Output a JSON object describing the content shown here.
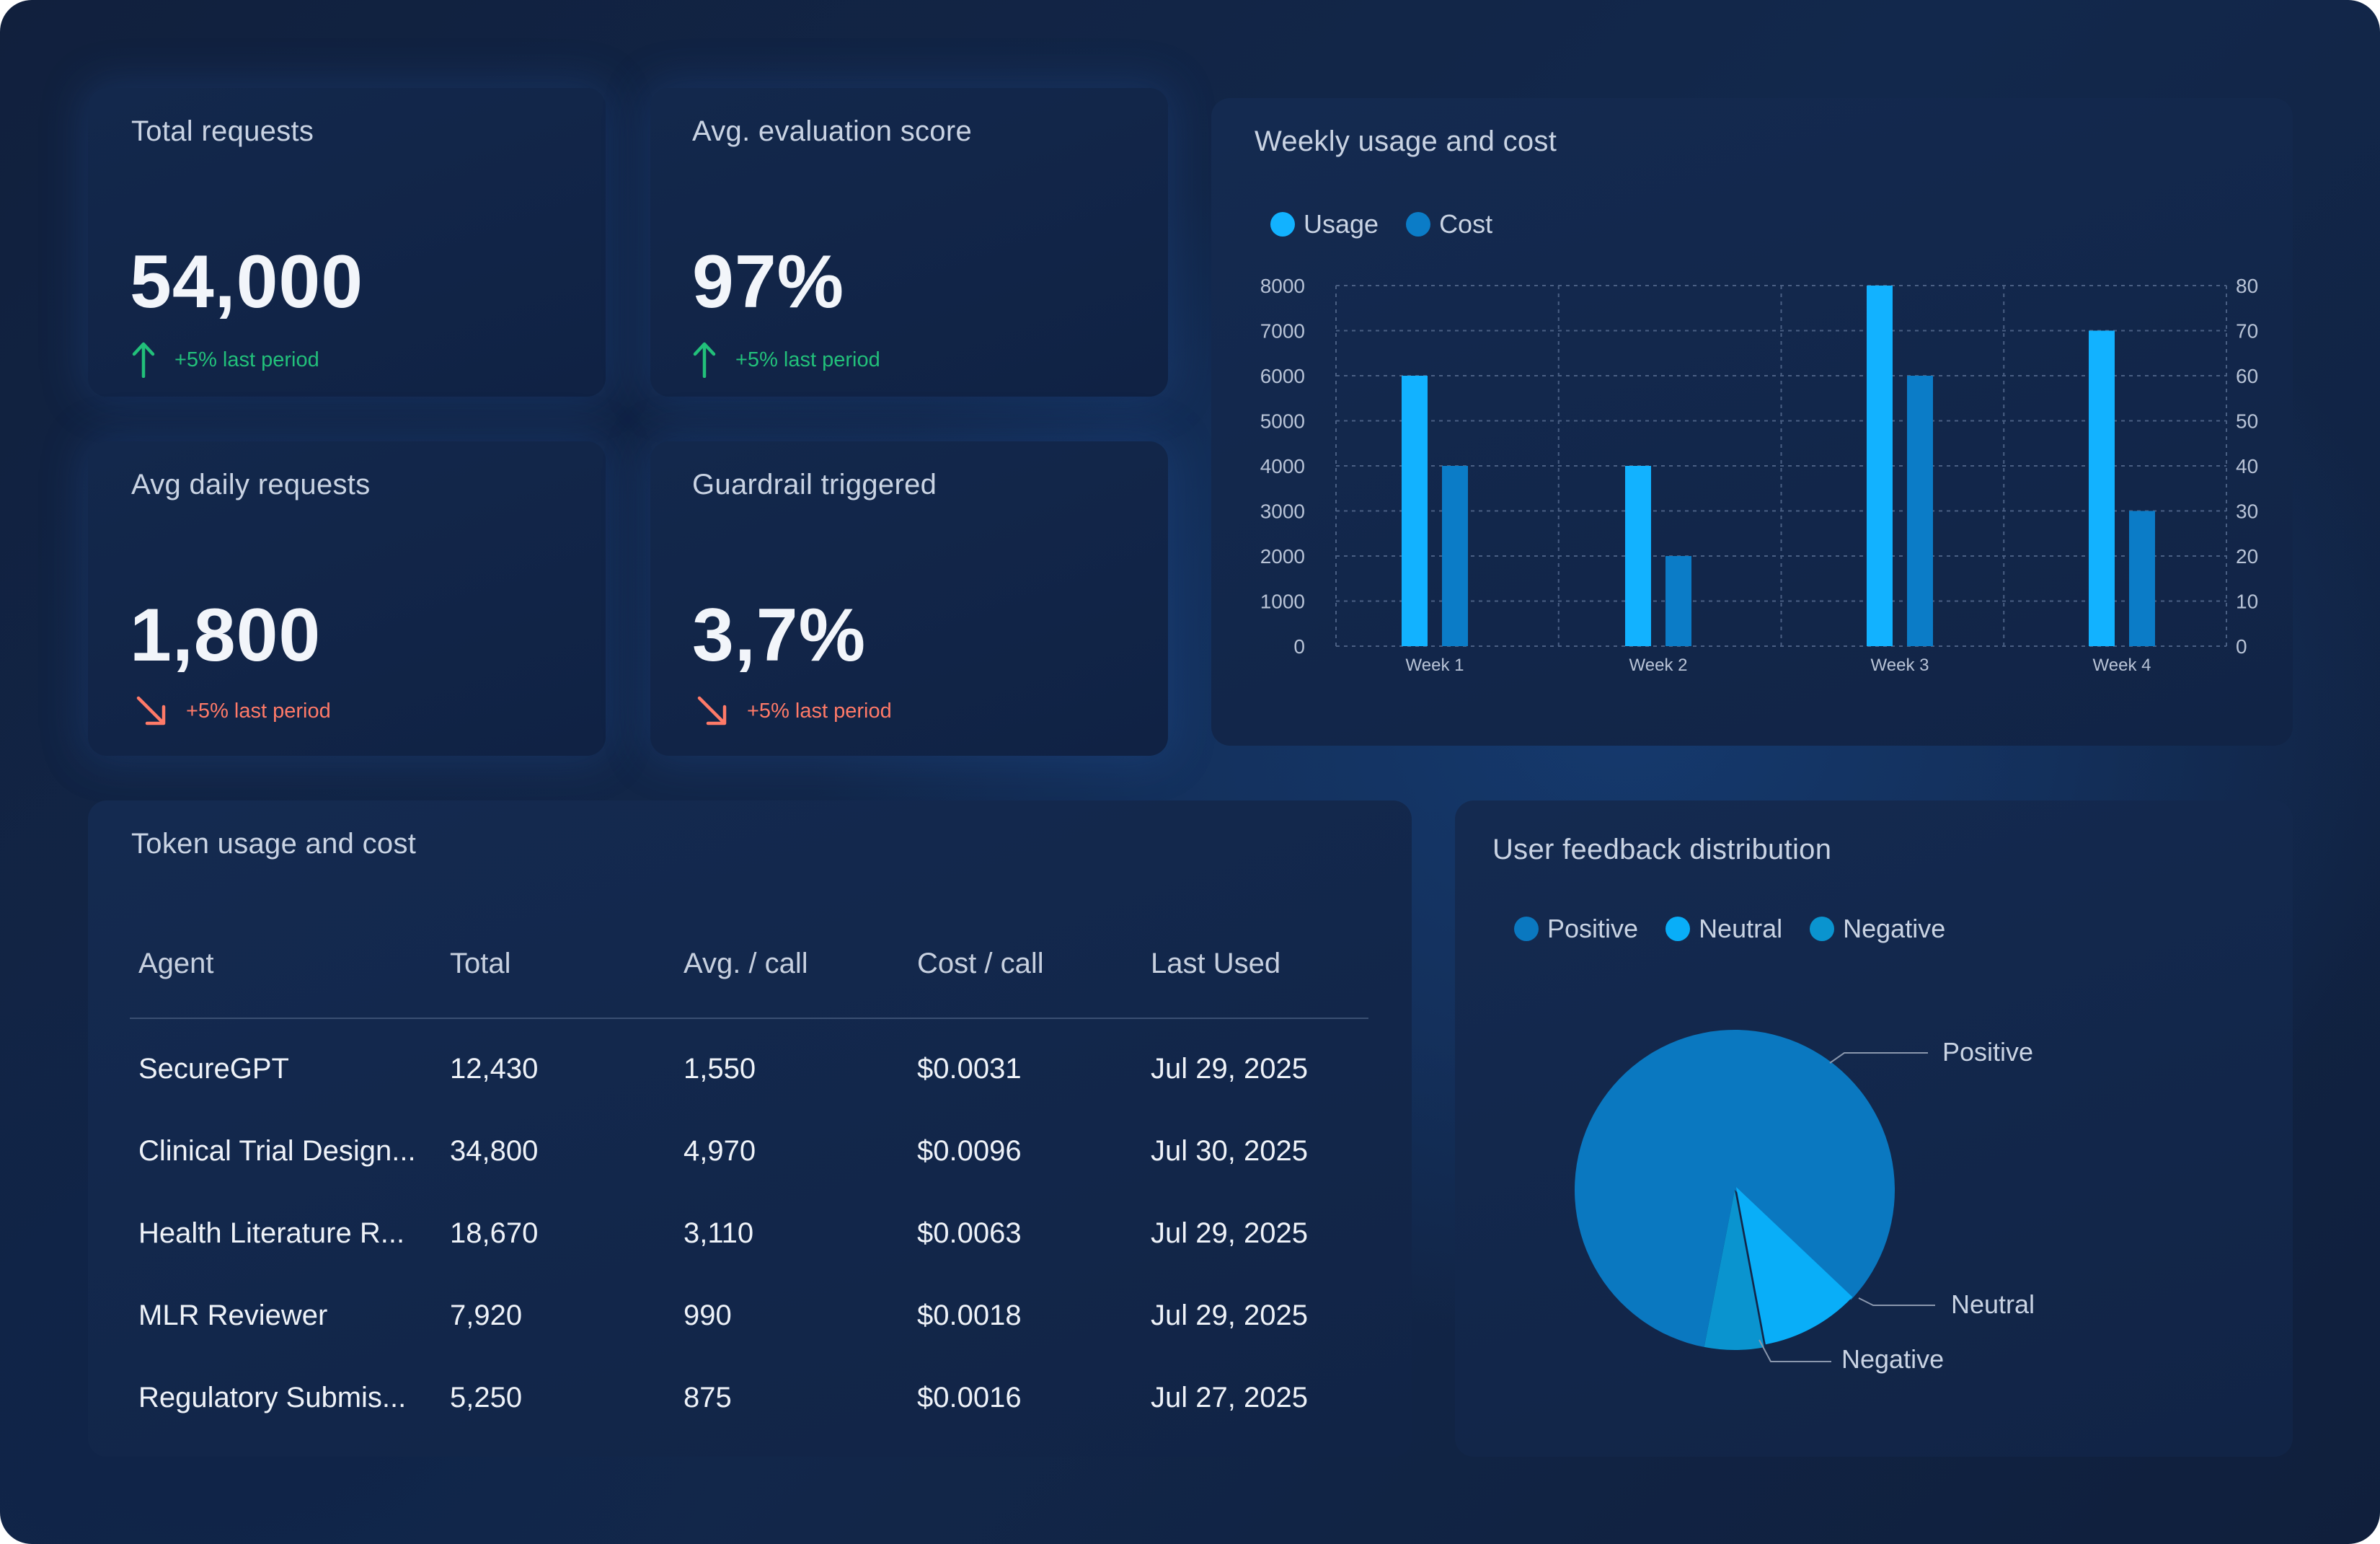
{
  "colors": {
    "usage": "#12b2ff",
    "cost": "#0b7cc7",
    "positive": "#0a78c0",
    "neutral": "#09aef8",
    "negative": "#0a94cf",
    "up": "#22c07a",
    "down": "#ff7a68"
  },
  "kpis": [
    {
      "title": "Total requests",
      "value": "54,000",
      "delta": "+5% last period",
      "direction": "up"
    },
    {
      "title": "Avg. evaluation score",
      "value": "97%",
      "delta": "+5% last period",
      "direction": "up"
    },
    {
      "title": "Avg daily requests",
      "value": "1,800",
      "delta": "+5% last period",
      "direction": "down"
    },
    {
      "title": "Guardrail triggered",
      "value": "3,7%",
      "delta": "+5% last period",
      "direction": "down"
    }
  ],
  "weekly": {
    "title": "Weekly usage and cost",
    "legend": [
      "Usage",
      "Cost"
    ]
  },
  "tokens": {
    "title": "Token usage and cost",
    "columns": [
      "Agent",
      "Total",
      "Avg. / call",
      "Cost / call",
      "Last Used"
    ],
    "rows": [
      [
        "SecureGPT",
        "12,430",
        "1,550",
        "$0.0031",
        "Jul 29, 2025"
      ],
      [
        "Clinical Trial Design...",
        "34,800",
        "4,970",
        "$0.0096",
        "Jul 30, 2025"
      ],
      [
        "Health Literature R...",
        "18,670",
        "3,110",
        "$0.0063",
        "Jul 29, 2025"
      ],
      [
        "MLR Reviewer",
        "7,920",
        "990",
        "$0.0018",
        "Jul 29, 2025"
      ],
      [
        "Regulatory Submis...",
        "5,250",
        "875",
        "$0.0016",
        "Jul 27, 2025"
      ]
    ]
  },
  "feedback": {
    "title": "User feedback distribution",
    "legend": [
      "Positive",
      "Neutral",
      "Negative"
    ],
    "labels": [
      "Positive",
      "Neutral",
      "Negative"
    ]
  },
  "chart_data": [
    {
      "type": "bar",
      "title": "Weekly usage and cost",
      "categories": [
        "Week 1",
        "Week 2",
        "Week 3",
        "Week 4"
      ],
      "series": [
        {
          "name": "Usage",
          "axis": "left",
          "values": [
            6000,
            4000,
            8000,
            7000
          ]
        },
        {
          "name": "Cost",
          "axis": "right",
          "values": [
            40,
            20,
            60,
            30
          ]
        }
      ],
      "ylim_left": [
        0,
        8000
      ],
      "yticks_left": [
        "0",
        "1000",
        "2000",
        "3000",
        "4000",
        "5000",
        "6000",
        "7000",
        "8000"
      ],
      "ylim_right": [
        0,
        80
      ],
      "yticks_right": [
        "0",
        "10",
        "20",
        "30",
        "40",
        "50",
        "60",
        "70",
        "80"
      ],
      "grid": true,
      "legend_position": "top-left"
    },
    {
      "type": "pie",
      "title": "User feedback distribution",
      "slices": [
        {
          "name": "Positive",
          "value": 84
        },
        {
          "name": "Neutral",
          "value": 10
        },
        {
          "name": "Negative",
          "value": 6
        }
      ],
      "legend_position": "top-left"
    }
  ]
}
